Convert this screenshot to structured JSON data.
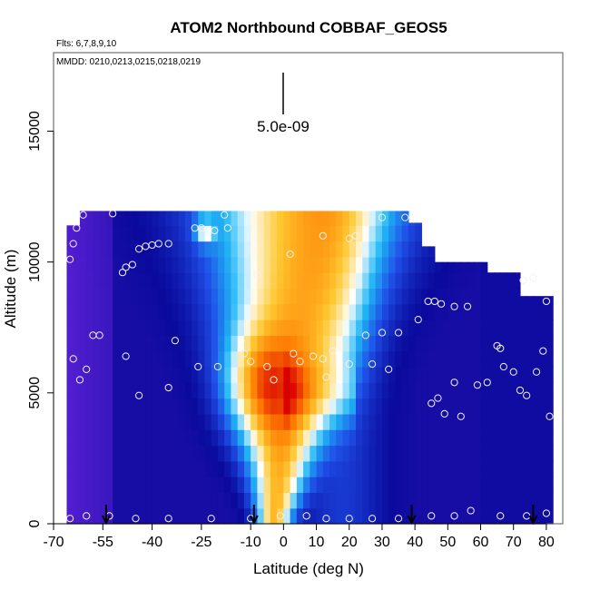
{
  "title": "ATOM2 Northbound COBBAF_GEOS5",
  "flights_label": "Flts: 6,7,8,9,10",
  "dates_label": "MMDD: 0210,0213,0215,0218,0219",
  "annotation": "5.0e-09",
  "chart_data": {
    "type": "heatmap",
    "title": "ATOM2 Northbound COBBAF_GEOS5",
    "xlabel": "Latitude (deg N)",
    "ylabel": "Altitude (m)",
    "xlim": [
      -70,
      85
    ],
    "ylim": [
      0,
      18000
    ],
    "x_ticks": [
      -70,
      -55,
      -40,
      -25,
      -10,
      0,
      10,
      20,
      30,
      40,
      50,
      60,
      70,
      80
    ],
    "x_tick_labels": [
      "-70",
      "-55",
      "-40",
      "-25",
      "-10",
      "0",
      "10",
      "20",
      "30",
      "40",
      "50",
      "60",
      "70",
      "80"
    ],
    "y_ticks": [
      0,
      5000,
      10000,
      15000
    ],
    "y_tick_labels": [
      "0",
      "5000",
      "10000",
      "15000"
    ],
    "scale_bar_value": "5.0e-09",
    "colormap": [
      "#5a1fd6",
      "#0a0a9c",
      "#1f4fe8",
      "#20b8f5",
      "#ffffff",
      "#ffc830",
      "#ff7a00",
      "#d80000"
    ],
    "arrows_latitude": [
      -54,
      -9,
      39,
      76
    ],
    "flight_points": [
      [
        -65,
        10100
      ],
      [
        -64,
        10700
      ],
      [
        -63,
        11300
      ],
      [
        -61,
        11800
      ],
      [
        -52,
        11850
      ],
      [
        -49,
        9600
      ],
      [
        -48,
        9800
      ],
      [
        -46,
        9900
      ],
      [
        -44,
        10500
      ],
      [
        -42,
        10600
      ],
      [
        -40,
        10650
      ],
      [
        -38,
        10700
      ],
      [
        -35,
        10700
      ],
      [
        -27,
        11300
      ],
      [
        -25,
        11300
      ],
      [
        -23,
        11200
      ],
      [
        -21,
        11200
      ],
      [
        -18,
        11800
      ],
      [
        -17,
        11300
      ],
      [
        -64,
        6300
      ],
      [
        -62,
        5500
      ],
      [
        -60,
        5900
      ],
      [
        -58,
        7200
      ],
      [
        -56,
        7200
      ],
      [
        -48,
        6400
      ],
      [
        -44,
        4900
      ],
      [
        -35,
        5200
      ],
      [
        -33,
        7000
      ],
      [
        -26,
        6000
      ],
      [
        -20,
        6000
      ],
      [
        -12,
        6500
      ],
      [
        -10,
        6200
      ],
      [
        -5,
        6000
      ],
      [
        -3,
        5500
      ],
      [
        3,
        6500
      ],
      [
        5,
        6200
      ],
      [
        9,
        6400
      ],
      [
        12,
        6300
      ],
      [
        13,
        5600
      ],
      [
        15,
        6600
      ],
      [
        20,
        6100
      ],
      [
        25,
        7200
      ],
      [
        27,
        6100
      ],
      [
        30,
        7300
      ],
      [
        32,
        5900
      ],
      [
        35,
        7300
      ],
      [
        -8,
        9500
      ],
      [
        2,
        10300
      ],
      [
        12,
        11000
      ],
      [
        20,
        10900
      ],
      [
        22,
        11000
      ],
      [
        30,
        11700
      ],
      [
        37,
        11700
      ],
      [
        41,
        7800
      ],
      [
        44,
        8500
      ],
      [
        46,
        8500
      ],
      [
        48,
        8400
      ],
      [
        52,
        8300
      ],
      [
        56,
        8300
      ],
      [
        73,
        9300
      ],
      [
        76,
        9400
      ],
      [
        80,
        8500
      ],
      [
        45,
        4600
      ],
      [
        47,
        4800
      ],
      [
        49,
        4200
      ],
      [
        52,
        5400
      ],
      [
        54,
        4100
      ],
      [
        59,
        5300
      ],
      [
        62,
        5400
      ],
      [
        65,
        6800
      ],
      [
        66,
        6700
      ],
      [
        67,
        6000
      ],
      [
        70,
        5800
      ],
      [
        72,
        5100
      ],
      [
        74,
        4900
      ],
      [
        77,
        5800
      ],
      [
        79,
        6600
      ],
      [
        81,
        4100
      ],
      [
        -65,
        200
      ],
      [
        -60,
        300
      ],
      [
        -53,
        300
      ],
      [
        -45,
        200
      ],
      [
        -35,
        200
      ],
      [
        -22,
        200
      ],
      [
        -10,
        200
      ],
      [
        -1,
        300
      ],
      [
        7,
        300
      ],
      [
        13,
        200
      ],
      [
        20,
        200
      ],
      [
        27,
        200
      ],
      [
        35,
        200
      ],
      [
        45,
        300
      ],
      [
        52,
        300
      ],
      [
        57,
        500
      ],
      [
        66,
        300
      ],
      [
        74,
        300
      ],
      [
        80,
        400
      ]
    ]
  }
}
